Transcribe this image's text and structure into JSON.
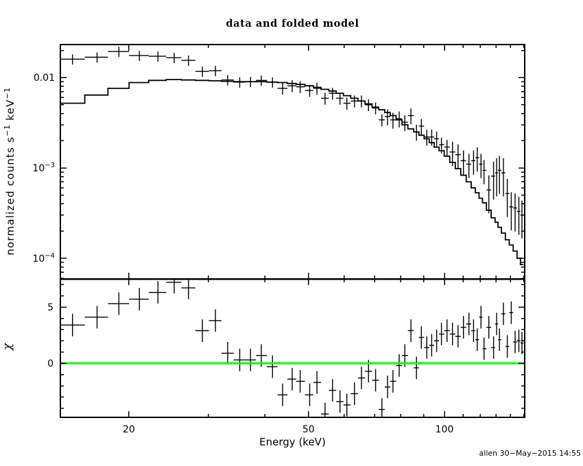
{
  "header": {
    "title": "data and folded model"
  },
  "axes": {
    "xlabel": "Energy (keV)",
    "ylabel_top": "normalized counts s−1 keV−1",
    "ylabel_top_parts": [
      {
        "text": "normalized counts s"
      },
      {
        "text": "−1",
        "sup": true
      },
      {
        "text": " keV",
        "sup": false
      },
      {
        "text": "−1",
        "sup": true
      }
    ],
    "ylabel_bottom": "χ"
  },
  "footer": {
    "credit": "allen 30−May−2015 14:55"
  },
  "colors": {
    "foreground": "#000000",
    "background": "#ffffff",
    "zero_line": "#00ff00"
  },
  "chart_data": [
    {
      "type": "line",
      "title": "data and folded model",
      "xlabel": "Energy (keV)",
      "ylabel": "normalized counts s−1 keV−1",
      "xscale": "log",
      "yscale": "log",
      "xlim": [
        14.1,
        150.6
      ],
      "ylim": [
        5.9e-05,
        0.0232
      ],
      "grid": false,
      "legend": "none",
      "x_major_ticks": [
        20,
        50,
        100
      ],
      "x_major_tick_labels": [
        "20",
        "50",
        "100"
      ],
      "x_minor_ticks": [
        30,
        40,
        60,
        70,
        80,
        90,
        110,
        120,
        130,
        140,
        150
      ],
      "y_major_ticks": [
        0.01,
        0.001,
        0.0001
      ],
      "y_major_tick_labels": [
        {
          "base": "0.01",
          "sup": ""
        },
        {
          "base": "10",
          "sup": "−3"
        },
        {
          "base": "10",
          "sup": "−4"
        }
      ],
      "series": [
        {
          "name": "data",
          "style": "cross-errorbars",
          "color": "#000000",
          "x": [
            15.0,
            17.0,
            19.0,
            21.1,
            23.2,
            25.2,
            27.1,
            29.1,
            31.1,
            33.1,
            35.2,
            37.2,
            39.3,
            41.6,
            43.8,
            46.0,
            47.9,
            50.3,
            52.2,
            54.4,
            56.5,
            58.7,
            60.8,
            63.2,
            65.5,
            67.9,
            70.4,
            72.7,
            74.8,
            76.9,
            79.4,
            81.7,
            84.3,
            86.7,
            88.9,
            91.4,
            93.7,
            96.1,
            98.5,
            101.3,
            104.2,
            107.2,
            110.2,
            113.3,
            116.0,
            118.2,
            120.5,
            122.4,
            125.4,
            128.5,
            130.5,
            132.4,
            135.1,
            137.8,
            140.6,
            143.4,
            146.2,
            148.5
          ],
          "y": [
            0.016,
            0.0168,
            0.0194,
            0.0175,
            0.0172,
            0.0166,
            0.0155,
            0.0117,
            0.0119,
            0.0094,
            0.0089,
            0.009,
            0.0093,
            0.0089,
            0.0076,
            0.0081,
            0.0079,
            0.0072,
            0.0076,
            0.0059,
            0.0067,
            0.0059,
            0.0052,
            0.0055,
            0.0055,
            0.005,
            0.0046,
            0.0034,
            0.0037,
            0.0034,
            0.0035,
            0.0032,
            0.0038,
            0.0025,
            0.0029,
            0.0022,
            0.0022,
            0.0021,
            0.0018,
            0.0017,
            0.0015,
            0.0014,
            0.0012,
            0.0011,
            0.0012,
            0.0013,
            0.0011,
            0.00094,
            0.00057,
            0.00081,
            0.00088,
            0.00094,
            0.00088,
            0.00052,
            0.00037,
            0.00036,
            0.00033,
            0.0003
          ],
          "yerr_frac": [
            0.13,
            0.13,
            0.13,
            0.13,
            0.13,
            0.13,
            0.13,
            0.13,
            0.13,
            0.13,
            0.13,
            0.13,
            0.13,
            0.13,
            0.15,
            0.15,
            0.15,
            0.15,
            0.15,
            0.15,
            0.15,
            0.15,
            0.15,
            0.15,
            0.15,
            0.15,
            0.15,
            0.15,
            0.2,
            0.2,
            0.2,
            0.2,
            0.2,
            0.2,
            0.2,
            0.2,
            0.2,
            0.2,
            0.2,
            0.2,
            0.3,
            0.3,
            0.3,
            0.3,
            0.3,
            0.3,
            0.3,
            0.3,
            0.45,
            0.45,
            0.45,
            0.45,
            0.45,
            0.45,
            0.45,
            0.45,
            0.45,
            0.45
          ]
        },
        {
          "name": "folded model",
          "style": "histogram",
          "color": "#000000",
          "y": [
            0.0052,
            0.0064,
            0.0076,
            0.0088,
            0.0093,
            0.0095,
            0.0094,
            0.0093,
            0.0092,
            0.0091,
            0.009,
            0.009,
            0.009,
            0.0089,
            0.0088,
            0.0086,
            0.0084,
            0.0081,
            0.0078,
            0.0074,
            0.0071,
            0.0067,
            0.0063,
            0.0059,
            0.0055,
            0.0051,
            0.0047,
            0.0044,
            0.0041,
            0.0038,
            0.0034,
            0.003,
            0.0027,
            0.0025,
            0.0023,
            0.0021,
            0.0019,
            0.0017,
            0.00155,
            0.00135,
            0.00115,
            0.00098,
            0.00083,
            0.0007,
            0.0006,
            0.00053,
            0.00046,
            0.00041,
            0.00034,
            0.00028,
            0.00025,
            0.00022,
            0.00019,
            0.00016,
            0.00014,
            0.00012,
            0.0001,
            8.5e-05
          ]
        }
      ]
    },
    {
      "type": "scatter",
      "title": "",
      "xlabel": "Energy (keV)",
      "ylabel": "χ",
      "xscale": "log",
      "yscale": "linear",
      "xlim": [
        14.1,
        150.6
      ],
      "ylim": [
        -4.8,
        7.5
      ],
      "grid": false,
      "y_major_ticks": [
        0,
        5
      ],
      "y_major_tick_labels": [
        "0",
        "5"
      ],
      "y_minor_tick_step": 1,
      "zero_line": {
        "y": 0,
        "color": "#00ff00"
      },
      "series": [
        {
          "name": "chi residuals",
          "style": "cross-errorbars",
          "color": "#000000",
          "yerr": 1.0,
          "x": [
            15.0,
            17.0,
            19.0,
            21.1,
            23.2,
            25.2,
            27.1,
            29.1,
            31.1,
            33.1,
            35.2,
            37.2,
            39.3,
            41.6,
            43.8,
            46.0,
            47.9,
            50.3,
            52.2,
            54.4,
            56.5,
            58.7,
            60.8,
            63.2,
            65.5,
            67.9,
            70.4,
            72.7,
            74.8,
            76.9,
            79.4,
            81.7,
            84.3,
            86.7,
            88.9,
            91.4,
            93.7,
            96.1,
            98.5,
            101.3,
            104.2,
            107.2,
            110.2,
            113.3,
            116.0,
            118.2,
            120.5,
            122.4,
            125.4,
            128.5,
            130.5,
            132.4,
            135.1,
            137.8,
            140.6,
            143.4,
            146.2,
            148.5
          ],
          "y": [
            3.4,
            4.1,
            5.3,
            5.7,
            6.3,
            7.2,
            6.7,
            2.9,
            3.8,
            0.9,
            0.3,
            0.3,
            0.7,
            -0.3,
            -2.8,
            -1.4,
            -1.6,
            -2.8,
            -1.7,
            -4.5,
            -2.4,
            -3.4,
            -3.7,
            -2.7,
            -1.3,
            -0.7,
            -1.5,
            -4.1,
            -2.1,
            -1.6,
            -0.2,
            0.7,
            2.9,
            -0.4,
            2.3,
            1.4,
            1.6,
            2.0,
            2.6,
            2.9,
            2.6,
            2.4,
            3.2,
            3.5,
            2.9,
            2.1,
            4.1,
            1.3,
            3.2,
            1.4,
            3.5,
            2.1,
            4.4,
            1.5,
            4.5,
            1.9,
            2.0,
            1.8
          ]
        }
      ]
    }
  ]
}
